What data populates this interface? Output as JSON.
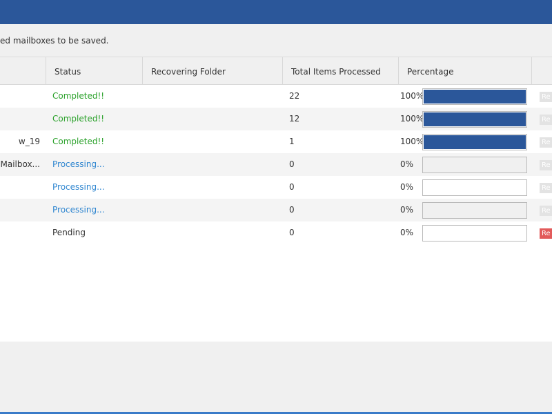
{
  "colors": {
    "titlebar": "#2b579a",
    "progress_fill": "#2b579a",
    "completed": "#2aa12a",
    "processing": "#2f86d0",
    "action_active": "#e25a5a"
  },
  "instruction": "ed mailboxes to be saved.",
  "table": {
    "headers": {
      "status": "Status",
      "folder": "Recovering Folder",
      "items": "Total Items Processed",
      "percentage": "Percentage"
    },
    "rows": [
      {
        "name": "",
        "status": "Completed!!",
        "folder": "",
        "items": "22",
        "percent_text": "100%",
        "progress": 1.0,
        "action": "Re"
      },
      {
        "name": "",
        "status": "Completed!!",
        "folder": "",
        "items": "12",
        "percent_text": "100%",
        "progress": 1.0,
        "action": "Re"
      },
      {
        "name": "w_19",
        "status": "Completed!!",
        "folder": "",
        "items": "1",
        "percent_text": "100%",
        "progress": 1.0,
        "action": "Re"
      },
      {
        "name": "nMailbox...",
        "status": "Processing...",
        "folder": "",
        "items": "0",
        "percent_text": "0%",
        "progress": 0.0,
        "action": "Re"
      },
      {
        "name": "",
        "status": "Processing...",
        "folder": "",
        "items": "0",
        "percent_text": "0%",
        "progress": 0.0,
        "action": "Re"
      },
      {
        "name": "",
        "status": "Processing...",
        "folder": "",
        "items": "0",
        "percent_text": "0%",
        "progress": 0.0,
        "action": "Re"
      },
      {
        "name": "",
        "status": "Pending",
        "folder": "",
        "items": "0",
        "percent_text": "0%",
        "progress": 0.0,
        "action": "Re"
      }
    ]
  }
}
